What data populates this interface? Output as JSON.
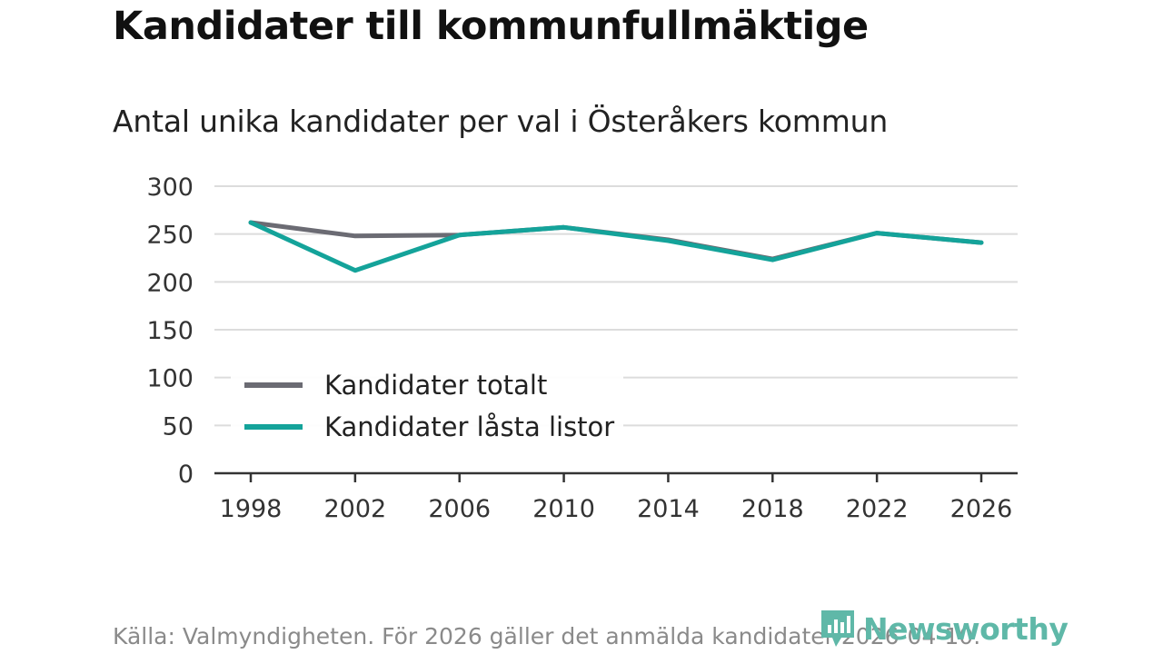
{
  "title": "Kandidater till kommunfullmäktige",
  "subtitle": "Antal unika kandidater per val i Österåkers kommun",
  "source": "Källa: Valmyndigheten. För 2026 gäller det anmälda kandidater 2026-04-10.",
  "brand": {
    "name": "Newsworthy",
    "icon": "newsworthy-logo-icon",
    "color": "#5fb8a8"
  },
  "chart_data": {
    "type": "line",
    "categories": [
      "1998",
      "2002",
      "2006",
      "2010",
      "2014",
      "2018",
      "2022",
      "2026"
    ],
    "series": [
      {
        "name": "Kandidater totalt",
        "color": "#6b6b73",
        "values": [
          262,
          248,
          249,
          257,
          244,
          224,
          251,
          241
        ]
      },
      {
        "name": "Kandidater låsta listor",
        "color": "#14a39a",
        "values": [
          262,
          212,
          249,
          257,
          243,
          223,
          251,
          241
        ]
      }
    ],
    "yticks": [
      0,
      50,
      100,
      150,
      200,
      250,
      300
    ],
    "ytick_labels": [
      "0",
      "50",
      "100",
      "150",
      "200",
      "250",
      "300"
    ],
    "ylim": [
      0,
      300
    ],
    "grid": true,
    "legend_position": "center-left",
    "xlabel": "",
    "ylabel": ""
  }
}
